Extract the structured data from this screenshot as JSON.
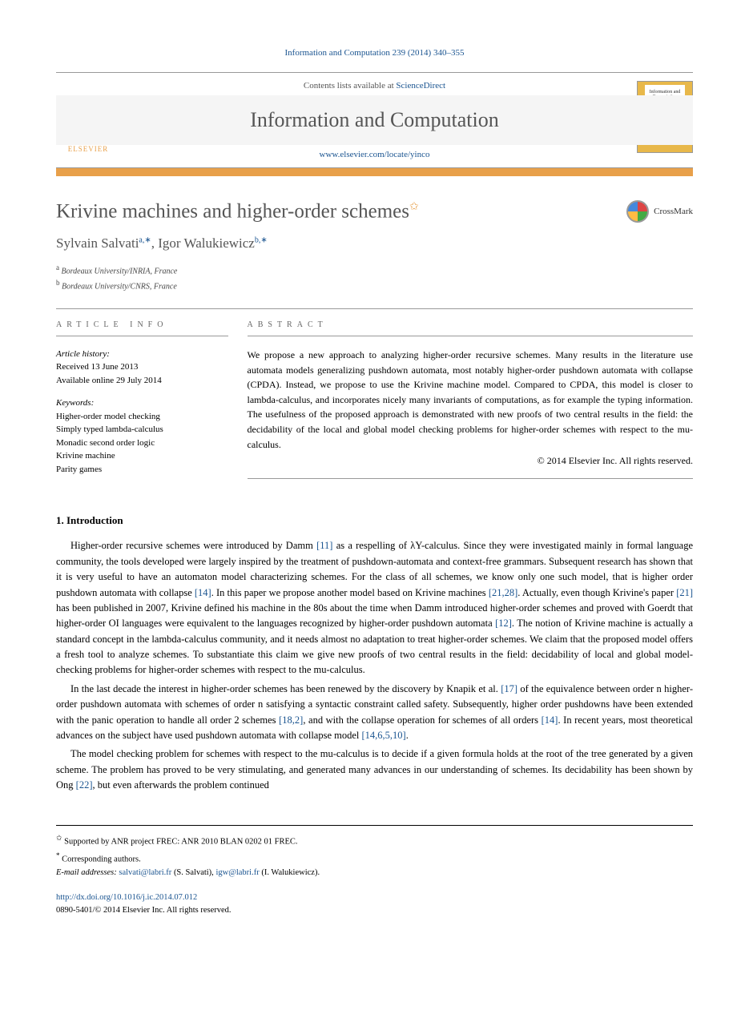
{
  "citation": "Information and Computation 239 (2014) 340–355",
  "contents_prefix": "Contents lists available at ",
  "contents_link": "ScienceDirect",
  "journal_name": "Information and Computation",
  "journal_url": "www.elsevier.com/locate/yinco",
  "elsevier_label": "ELSEVIER",
  "cover_text": "Information and Computation",
  "title": "Krivine machines and higher-order schemes",
  "title_marker": "✩",
  "crossmark_label": "CrossMark",
  "authors_html": "Sylvain Salvati",
  "author1_name": "Sylvain Salvati",
  "author1_sup": "a,∗",
  "author_sep": ", ",
  "author2_name": "Igor Walukiewicz",
  "author2_sup": "b,∗",
  "affil_a_sup": "a",
  "affil_a": " Bordeaux University/INRIA, France",
  "affil_b_sup": "b",
  "affil_b": " Bordeaux University/CNRS, France",
  "info_label": "article info",
  "abstract_label": "abstract",
  "history_title": "Article history:",
  "history_received": "Received 13 June 2013",
  "history_online": "Available online 29 July 2014",
  "keywords_title": "Keywords:",
  "keywords": [
    "Higher-order model checking",
    "Simply typed lambda-calculus",
    "Monadic second order logic",
    "Krivine machine",
    "Parity games"
  ],
  "abstract_text": "We propose a new approach to analyzing higher-order recursive schemes. Many results in the literature use automata models generalizing pushdown automata, most notably higher-order pushdown automata with collapse (CPDA). Instead, we propose to use the Krivine machine model. Compared to CPDA, this model is closer to lambda-calculus, and incorporates nicely many invariants of computations, as for example the typing information. The usefulness of the proposed approach is demonstrated with new proofs of two central results in the field: the decidability of the local and global model checking problems for higher-order schemes with respect to the mu-calculus.",
  "copyright": "© 2014 Elsevier Inc. All rights reserved.",
  "sec1_heading": "1. Introduction",
  "para1_a": "Higher-order recursive schemes were introduced by Damm ",
  "para1_ref1": "[11]",
  "para1_b": " as a respelling of λY-calculus. Since they were investigated mainly in formal language community, the tools developed were largely inspired by the treatment of pushdown-automata and context-free grammars. Subsequent research has shown that it is very useful to have an automaton model characterizing schemes. For the class of all schemes, we know only one such model, that is higher order pushdown automata with collapse ",
  "para1_ref2": "[14]",
  "para1_c": ". In this paper we propose another model based on Krivine machines ",
  "para1_ref3": "[21,28]",
  "para1_d": ". Actually, even though Krivine's paper ",
  "para1_ref4": "[21]",
  "para1_e": " has been published in 2007, Krivine defined his machine in the 80s about the time when Damm introduced higher-order schemes and proved with Goerdt that higher-order OI languages were equivalent to the languages recognized by higher-order pushdown automata ",
  "para1_ref5": "[12]",
  "para1_f": ". The notion of Krivine machine is actually a standard concept in the lambda-calculus community, and it needs almost no adaptation to treat higher-order schemes. We claim that the proposed model offers a fresh tool to analyze schemes. To substantiate this claim we give new proofs of two central results in the field: decidability of local and global model-checking problems for higher-order schemes with respect to the mu-calculus.",
  "para2_a": "In the last decade the interest in higher-order schemes has been renewed by the discovery by Knapik et al. ",
  "para2_ref1": "[17]",
  "para2_b": " of the equivalence between order n higher-order pushdown automata with schemes of order n satisfying a syntactic constraint called safety. Subsequently, higher order pushdowns have been extended with the panic operation to handle all order 2 schemes ",
  "para2_ref2": "[18,2]",
  "para2_c": ", and with the collapse operation for schemes of all orders ",
  "para2_ref3": "[14]",
  "para2_d": ". In recent years, most theoretical advances on the subject have used pushdown automata with collapse model ",
  "para2_ref4": "[14,6,5,10]",
  "para2_e": ".",
  "para3_a": "The model checking problem for schemes with respect to the mu-calculus is to decide if a given formula holds at the root of the tree generated by a given scheme. The problem has proved to be very stimulating, and generated many advances in our understanding of schemes. Its decidability has been shown by Ong ",
  "para3_ref1": "[22]",
  "para3_b": ", but even afterwards the problem continued",
  "fn_star_sup": "✩",
  "fn_star": " Supported by ANR project FREC: ANR 2010 BLAN 0202 01 FREC.",
  "fn_corr_sup": "*",
  "fn_corr": " Corresponding authors.",
  "fn_email_label": "E-mail addresses: ",
  "fn_email1": "salvati@labri.fr",
  "fn_email1_after": " (S. Salvati), ",
  "fn_email2": "igw@labri.fr",
  "fn_email2_after": " (I. Walukiewicz).",
  "doi": "http://dx.doi.org/10.1016/j.ic.2014.07.012",
  "issn_line": "0890-5401/© 2014 Elsevier Inc. All rights reserved.",
  "colors": {
    "link": "#1a5490",
    "orange": "#e8a04a",
    "text": "#000000",
    "heading_gray": "#555555",
    "border": "#999999"
  }
}
